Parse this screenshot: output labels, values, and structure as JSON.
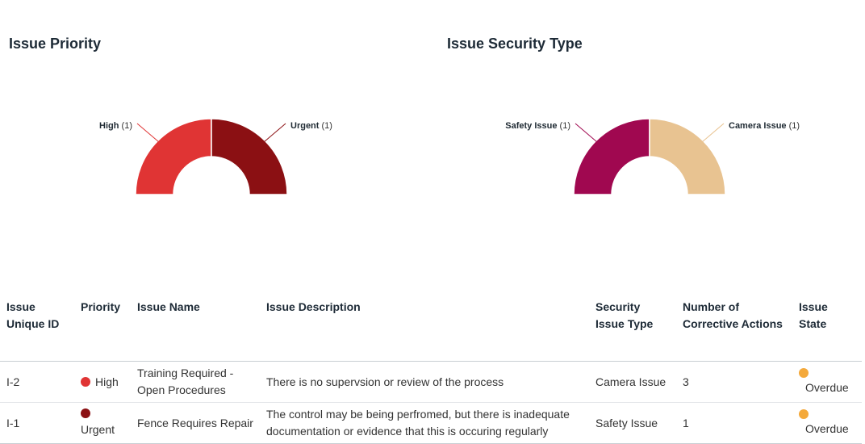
{
  "charts": [
    {
      "title": "Issue Priority",
      "slices": [
        {
          "label": "High",
          "count": "(1)",
          "color": "#e03434"
        },
        {
          "label": "Urgent",
          "count": "(1)",
          "color": "#8b1013"
        }
      ]
    },
    {
      "title": "Issue Security Type",
      "slices": [
        {
          "label": "Safety Issue",
          "count": "(1)",
          "color": "#a00850"
        },
        {
          "label": "Camera Issue",
          "count": "(1)",
          "color": "#e8c391"
        }
      ]
    }
  ],
  "chart_data": [
    {
      "type": "pie",
      "title": "Issue Priority",
      "categories": [
        "High",
        "Urgent"
      ],
      "values": [
        1,
        1
      ]
    },
    {
      "type": "pie",
      "title": "Issue Security Type",
      "categories": [
        "Safety Issue",
        "Camera Issue"
      ],
      "values": [
        1,
        1
      ]
    }
  ],
  "table": {
    "headers": {
      "id": "Issue Unique ID",
      "priority": "Priority",
      "name": "Issue Name",
      "description": "Issue Description",
      "security": "Security Issue Type",
      "actions": "Number of Corrective Actions",
      "state": "Issue State"
    },
    "rows": [
      {
        "id": "I-2",
        "priority": "High",
        "priority_color": "#e03434",
        "name": "Training Required - Open Procedures",
        "description": "There is no supervsion or review of the process",
        "security": "Camera Issue",
        "actions": "3",
        "state": "Overdue",
        "state_color": "#f4a93b"
      },
      {
        "id": "I-1",
        "priority": "Urgent",
        "priority_color": "#8b1013",
        "name": "Fence Requires Repair",
        "description": "The control may be being perfromed, but there is inadequate documentation or evidence that this is occuring regularly",
        "security": "Safety Issue",
        "actions": "1",
        "state": "Overdue",
        "state_color": "#f4a93b"
      }
    ]
  }
}
